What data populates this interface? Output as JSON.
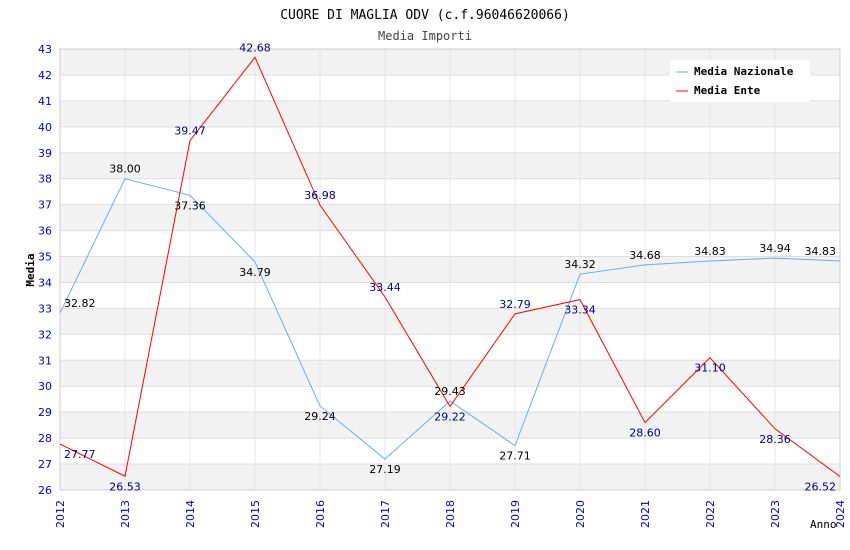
{
  "chart_data": {
    "type": "line",
    "title": "CUORE DI MAGLIA ODV (c.f.96046620066)",
    "subtitle": "Media Importi",
    "xlabel": "Anno",
    "ylabel": "Media",
    "ylim": [
      26,
      43
    ],
    "yticks": [
      26,
      27,
      28,
      29,
      30,
      31,
      32,
      33,
      34,
      35,
      36,
      37,
      38,
      39,
      40,
      41,
      42,
      43
    ],
    "x": [
      "2012",
      "2013",
      "2014",
      "2015",
      "2016",
      "2017",
      "2018",
      "2019",
      "2020",
      "2021",
      "2022",
      "2023",
      "2024"
    ],
    "legend_position": "top-right",
    "grid": true,
    "series": [
      {
        "name": "Media Nazionale",
        "color": "#6aaaee",
        "label_color": "#000000",
        "values": [
          32.82,
          38.0,
          37.36,
          34.79,
          29.24,
          27.19,
          29.43,
          27.71,
          34.32,
          34.68,
          34.83,
          34.94,
          34.83
        ]
      },
      {
        "name": "Media Ente",
        "color": "#ff0000",
        "label_color": "#000080",
        "values": [
          27.77,
          26.53,
          39.47,
          42.68,
          36.98,
          33.44,
          29.22,
          32.79,
          33.34,
          28.6,
          31.1,
          28.36,
          26.52
        ]
      }
    ]
  }
}
